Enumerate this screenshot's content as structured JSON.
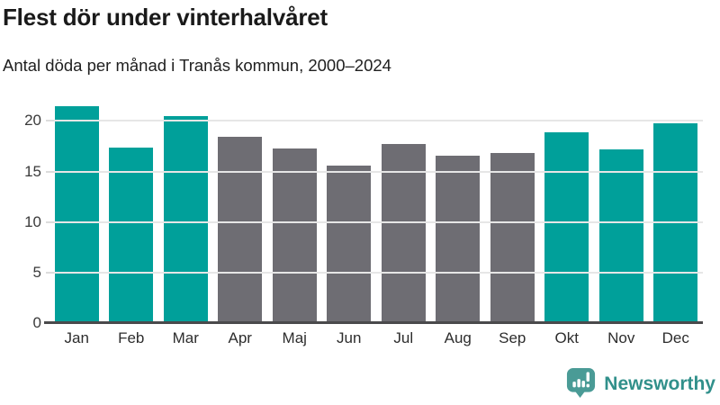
{
  "header": {
    "title": "Flest dör under vinterhalvåret",
    "subtitle": "Antal döda per månad i Tranås kommun, 2000–2024"
  },
  "chart_data": {
    "type": "bar",
    "title": "Flest dör under vinterhalvåret",
    "subtitle": "Antal döda per månad i Tranås kommun, 2000–2024",
    "categories": [
      "Jan",
      "Feb",
      "Mar",
      "Apr",
      "Maj",
      "Jun",
      "Jul",
      "Aug",
      "Sep",
      "Okt",
      "Nov",
      "Dec"
    ],
    "values": [
      21.5,
      17.4,
      20.5,
      18.4,
      17.3,
      15.6,
      17.7,
      16.6,
      16.8,
      18.9,
      17.2,
      19.8
    ],
    "highlighted": [
      true,
      true,
      true,
      false,
      false,
      false,
      false,
      false,
      false,
      true,
      true,
      true
    ],
    "colors": {
      "highlight": "#00a09a",
      "base": "#6e6d73"
    },
    "xlabel": "",
    "ylabel": "",
    "yticks": [
      0,
      5,
      10,
      15,
      20
    ],
    "ylim": [
      0,
      22
    ],
    "grid": true,
    "legend": "none",
    "axis_color": "#4a4a4c",
    "gridline_color": "#e6e6e6"
  },
  "footer": {
    "brand": "Newsworthy",
    "brand_color": "#31908b",
    "brand_icon": "newsworthy-speech-bubble-barchart-icon",
    "brand_icon_color": "#4a9b96"
  }
}
